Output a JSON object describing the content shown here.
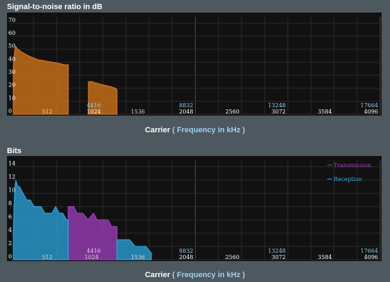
{
  "chart_data": [
    {
      "type": "area",
      "title": "Signal-to-noise ratio in dB",
      "xlabel": {
        "prefix": "Carrier",
        "open": "(",
        "unit": "Frequency in kHz",
        "close": ")"
      },
      "ylim": [
        0,
        75
      ],
      "y_ticks": [
        "0",
        "10",
        "20",
        "30",
        "40",
        "50",
        "60",
        "70"
      ],
      "carrier_range": [
        0,
        4096
      ],
      "carrier_ticks": [
        "1024",
        "2048",
        "2560",
        "3072",
        "3584",
        "4096"
      ],
      "freq_ticks": [
        {
          "label": "4416",
          "carrier": 1024
        },
        {
          "label": "8832",
          "carrier": 2048
        },
        {
          "label": "13248",
          "carrier": 3072
        },
        {
          "label": "17664",
          "carrier": 4096
        }
      ],
      "inner_carrier_ticks": [
        {
          "label": "512",
          "carrier": 512
        },
        {
          "label": "1536",
          "carrier": 1536
        }
      ],
      "series": [
        {
          "color": "#d9781a",
          "segments": [
            {
              "start": 32,
              "end": 640,
              "points": [
                [
                  32,
                  36
                ],
                [
                  40,
                  44
                ],
                [
                  50,
                  50
                ],
                [
                  60,
                  52
                ],
                [
                  80,
                  50
                ],
                [
                  120,
                  48
                ],
                [
                  170,
                  46
                ],
                [
                  230,
                  44
                ],
                [
                  300,
                  42
                ],
                [
                  380,
                  41
                ],
                [
                  460,
                  40
                ],
                [
                  540,
                  39
                ],
                [
                  600,
                  38
                ],
                [
                  640,
                  38
                ]
              ]
            },
            {
              "start": 864,
              "end": 1180,
              "points": [
                [
                  864,
                  25
                ],
                [
                  900,
                  25
                ],
                [
                  950,
                  24
                ],
                [
                  1000,
                  23
                ],
                [
                  1060,
                  22
                ],
                [
                  1120,
                  21
                ],
                [
                  1160,
                  20
                ],
                [
                  1180,
                  19
                ]
              ]
            }
          ]
        }
      ]
    },
    {
      "type": "area",
      "title": "Bits",
      "xlabel": {
        "prefix": "Carrier",
        "open": "(",
        "unit": "Frequency in kHz",
        "close": ")"
      },
      "ylim": [
        0,
        15
      ],
      "y_ticks": [
        "0",
        "2",
        "4",
        "6",
        "8",
        "10",
        "12",
        "14"
      ],
      "carrier_range": [
        0,
        4096
      ],
      "carrier_ticks": [
        "2048",
        "2560",
        "3072",
        "3584",
        "4096"
      ],
      "freq_ticks": [
        {
          "label": "8832",
          "carrier": 2048
        },
        {
          "label": "13248",
          "carrier": 3072
        },
        {
          "label": "17664",
          "carrier": 4096
        }
      ],
      "inner_freq_ticks": [
        {
          "label": "4416",
          "carrier": 1024
        }
      ],
      "inner_carrier_ticks": [
        {
          "label": "512",
          "carrier": 512
        },
        {
          "label": "1024",
          "carrier": 1024
        },
        {
          "label": "1536",
          "carrier": 1536
        }
      ],
      "legend_position": "top-right",
      "series": [
        {
          "name": "Transmission",
          "color": "#a03fc0",
          "segments": [
            {
              "start": 640,
              "end": 1180,
              "points": [
                [
                  640,
                  8
                ],
                [
                  700,
                  8
                ],
                [
                  740,
                  7
                ],
                [
                  800,
                  7
                ],
                [
                  860,
                  6
                ],
                [
                  920,
                  7
                ],
                [
                  960,
                  6
                ],
                [
                  1020,
                  6
                ],
                [
                  1080,
                  6
                ],
                [
                  1120,
                  5
                ],
                [
                  1160,
                  5
                ],
                [
                  1180,
                  5
                ]
              ]
            }
          ]
        },
        {
          "name": "Reception",
          "color": "#2aa7df",
          "segments": [
            {
              "start": 32,
              "end": 640,
              "points": [
                [
                  32,
                  4
                ],
                [
                  40,
                  8
                ],
                [
                  50,
                  11
                ],
                [
                  60,
                  12
                ],
                [
                  80,
                  11
                ],
                [
                  100,
                  11
                ],
                [
                  140,
                  10
                ],
                [
                  180,
                  9
                ],
                [
                  220,
                  9
                ],
                [
                  260,
                  8
                ],
                [
                  300,
                  8
                ],
                [
                  340,
                  8
                ],
                [
                  380,
                  7
                ],
                [
                  420,
                  7
                ],
                [
                  460,
                  7
                ],
                [
                  500,
                  8
                ],
                [
                  540,
                  7
                ],
                [
                  580,
                  7
                ],
                [
                  620,
                  6
                ],
                [
                  640,
                  6
                ]
              ]
            },
            {
              "start": 1180,
              "end": 1560,
              "points": [
                [
                  1180,
                  3
                ],
                [
                  1250,
                  3
                ],
                [
                  1320,
                  3
                ],
                [
                  1380,
                  2
                ],
                [
                  1440,
                  2
                ],
                [
                  1500,
                  2
                ],
                [
                  1560,
                  1
                ]
              ]
            }
          ]
        }
      ]
    }
  ]
}
